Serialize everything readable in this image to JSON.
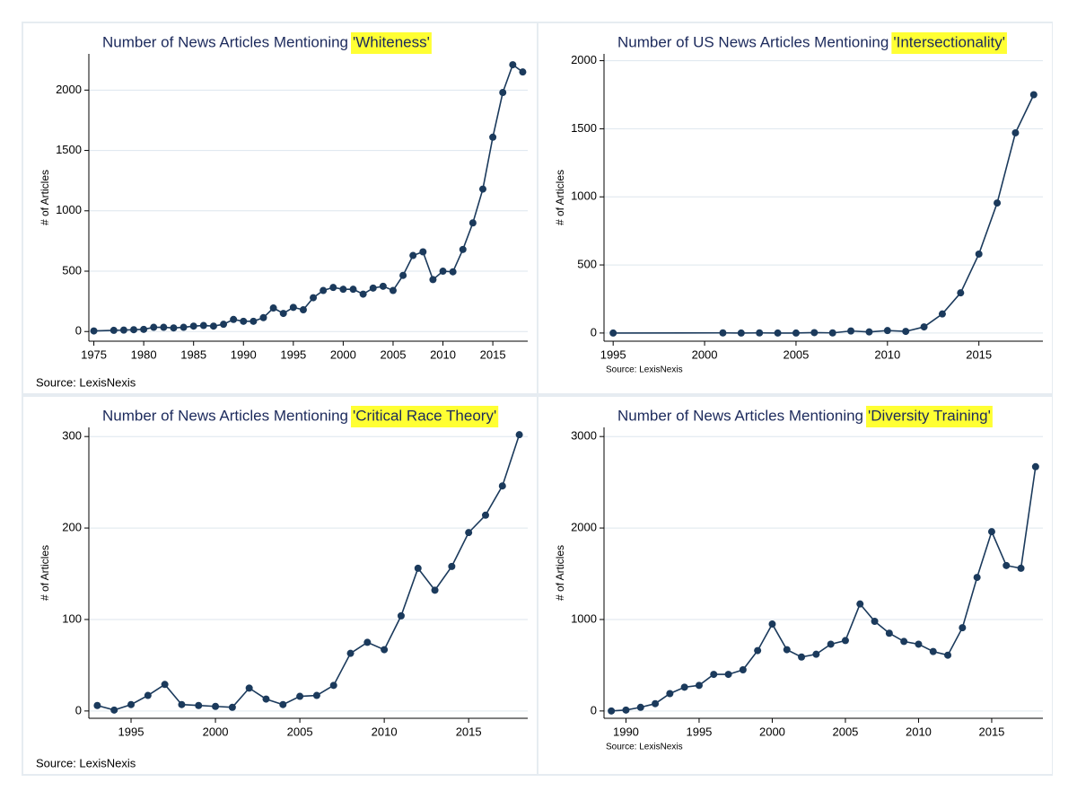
{
  "chart_data": [
    {
      "type": "line",
      "title": "Number of News Articles Mentioning",
      "title_highlight": "'Whiteness'",
      "y_label": "# of Articles",
      "source": "Source: LexisNexis",
      "color": "#1b3a5c",
      "grid": true,
      "x": [
        1975,
        1977,
        1978,
        1979,
        1980,
        1981,
        1982,
        1983,
        1984,
        1985,
        1986,
        1987,
        1988,
        1989,
        1990,
        1991,
        1992,
        1993,
        1994,
        1995,
        1996,
        1997,
        1998,
        1999,
        2000,
        2001,
        2002,
        2003,
        2004,
        2005,
        2006,
        2007,
        2008,
        2009,
        2010,
        2011,
        2012,
        2013,
        2014,
        2015,
        2016,
        2017,
        2018
      ],
      "values": [
        5,
        10,
        12,
        15,
        18,
        35,
        35,
        30,
        35,
        45,
        50,
        45,
        60,
        100,
        85,
        85,
        115,
        195,
        150,
        200,
        180,
        280,
        340,
        365,
        350,
        350,
        310,
        360,
        375,
        340,
        465,
        630,
        660,
        430,
        500,
        495,
        680,
        900,
        1180,
        1610,
        1980,
        2210,
        2150
      ],
      "xlim": [
        1974.5,
        2018.5
      ],
      "xticks": [
        1975,
        1980,
        1985,
        1990,
        1995,
        2000,
        2005,
        2010,
        2015
      ],
      "ylim": [
        -80,
        2300
      ],
      "yticks": [
        0,
        500,
        1000,
        1500,
        2000
      ]
    },
    {
      "type": "line",
      "title": "Number of US News Articles Mentioning",
      "title_highlight": "'Intersectionality'",
      "y_label": "# of Articles",
      "source": "Source: LexisNexis",
      "color": "#1b3a5c",
      "grid": true,
      "x": [
        1995,
        2001,
        2002,
        2003,
        2004,
        2005,
        2006,
        2007,
        2008,
        2009,
        2010,
        2011,
        2012,
        2013,
        2014,
        2015,
        2016,
        2017,
        2018
      ],
      "values": [
        0,
        1,
        0,
        1,
        0,
        0,
        3,
        1,
        15,
        8,
        18,
        12,
        45,
        140,
        295,
        580,
        955,
        1470,
        1750
      ],
      "xlim": [
        1994.5,
        2018.5
      ],
      "xticks": [
        1995,
        2000,
        2005,
        2010,
        2015
      ],
      "ylim": [
        -60,
        2050
      ],
      "yticks": [
        0,
        500,
        1000,
        1500,
        2000
      ]
    },
    {
      "type": "line",
      "title": "Number of News Articles Mentioning",
      "title_highlight": "'Critical Race Theory'",
      "y_label": "# of Articles",
      "source": "Source: LexisNexis",
      "color": "#1b3a5c",
      "grid": true,
      "x": [
        1993,
        1994,
        1995,
        1996,
        1997,
        1998,
        1999,
        2000,
        2001,
        2002,
        2003,
        2004,
        2005,
        2006,
        2007,
        2008,
        2009,
        2010,
        2011,
        2012,
        2013,
        2014,
        2015,
        2016,
        2017,
        2018
      ],
      "values": [
        6,
        1,
        7,
        17,
        29,
        7,
        6,
        5,
        4,
        25,
        13,
        7,
        16,
        17,
        28,
        63,
        75,
        67,
        104,
        156,
        132,
        158,
        195,
        214,
        246,
        302
      ],
      "xlim": [
        1992.5,
        2018.5
      ],
      "xticks": [
        1995,
        2000,
        2005,
        2010,
        2015
      ],
      "ylim": [
        -8,
        310
      ],
      "yticks": [
        0,
        100,
        200,
        300
      ]
    },
    {
      "type": "line",
      "title": "Number of News Articles Mentioning",
      "title_highlight": "'Diversity Training'",
      "y_label": "# of Articles",
      "source": "Source: LexisNexis",
      "color": "#1b3a5c",
      "grid": true,
      "x": [
        1989,
        1990,
        1991,
        1992,
        1993,
        1994,
        1995,
        1996,
        1997,
        1998,
        1999,
        2000,
        2001,
        2002,
        2003,
        2004,
        2005,
        2006,
        2007,
        2008,
        2009,
        2010,
        2011,
        2012,
        2013,
        2014,
        2015,
        2016,
        2017,
        2018
      ],
      "values": [
        0,
        10,
        40,
        80,
        190,
        260,
        280,
        400,
        400,
        450,
        660,
        950,
        670,
        590,
        620,
        730,
        770,
        1170,
        980,
        850,
        760,
        730,
        650,
        610,
        910,
        1460,
        1960,
        1590,
        1560,
        2670
      ],
      "xlim": [
        1988.5,
        2018.5
      ],
      "xticks": [
        1990,
        1995,
        2000,
        2005,
        2010,
        2015
      ],
      "ylim": [
        -80,
        3100
      ],
      "yticks": [
        0,
        1000,
        2000,
        3000
      ]
    }
  ]
}
